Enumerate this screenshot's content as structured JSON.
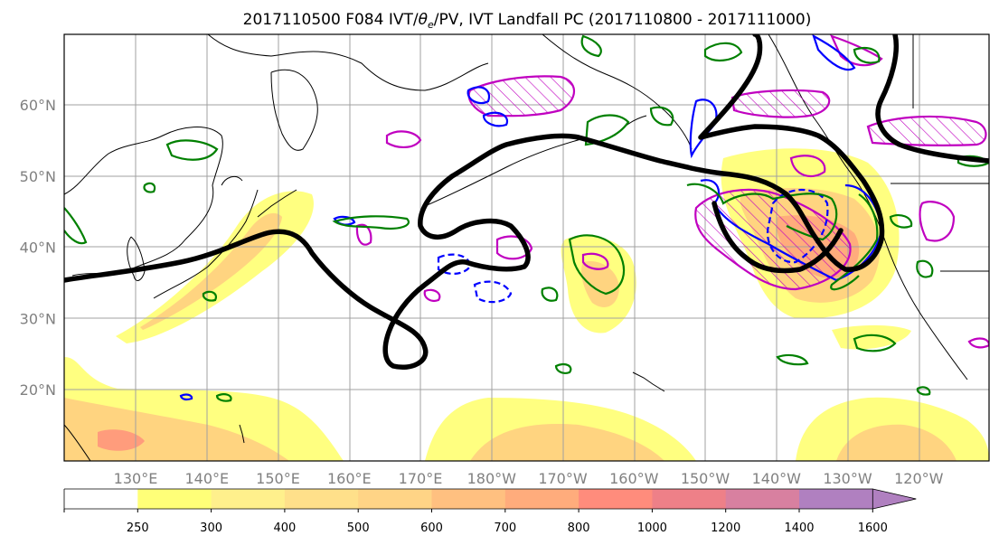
{
  "chart_data": {
    "type": "map",
    "title": "2017110500 F084 IVT/θe/PV, IVT Landfall PC (2017110800 - 2017111000)",
    "title_parts": {
      "prefix": "2017110500 F084 IVT/",
      "theta": "θ",
      "sub": "e",
      "suffix": "/PV, IVT Landfall PC (2017110800 - 2017111000)"
    },
    "grid": true,
    "latitude_labels": [
      "60°N",
      "50°N",
      "40°N",
      "30°N",
      "20°N"
    ],
    "longitude_labels": [
      "130°E",
      "140°E",
      "150°E",
      "160°E",
      "170°E",
      "180°W",
      "170°W",
      "160°W",
      "150°W",
      "140°W",
      "130°W",
      "120°W"
    ],
    "lon_range_degE": [
      120,
      250
    ],
    "lat_range": [
      10,
      70
    ],
    "colorbar": {
      "orientation": "horizontal",
      "extend": "max",
      "tick_labels": [
        "250",
        "300",
        "400",
        "500",
        "600",
        "700",
        "800",
        "1000",
        "1200",
        "1400",
        "1600"
      ],
      "levels": [
        0,
        250,
        300,
        400,
        500,
        600,
        700,
        800,
        1000,
        1200,
        1400,
        1600
      ],
      "colors": [
        "#ffffff",
        "#ffff78",
        "#fff08c",
        "#ffe08a",
        "#ffd486",
        "#ffc080",
        "#ffac7c",
        "#ff8c7c",
        "#ee8088",
        "#d880a0",
        "#b080c0"
      ]
    },
    "series_styles": {
      "ivt_fill": "#ffe680",
      "pc_line": "#000000",
      "pv_contour": "#008000",
      "blue_contour": "#0000ff",
      "magenta_contour": "#c000c0"
    }
  }
}
